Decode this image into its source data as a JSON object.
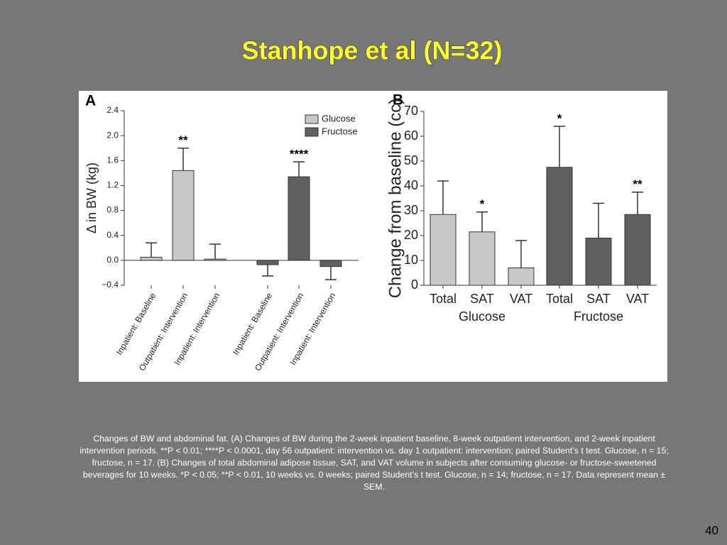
{
  "title": "Stanhope et al  (N=32)",
  "chart_data": [
    {
      "type": "bar",
      "panel": "A",
      "ylabel": "Δ in BW (kg)",
      "categories": [
        "Inpatient: Baseline",
        "Outpatient: Intervention",
        "Inpatient: Intervention",
        "Inpatient: Baseline",
        "Outpatient: Intervention",
        "Inpatient: Intervention"
      ],
      "series": [
        {
          "name": "Glucose",
          "color": "#c8c8c8",
          "values": [
            0.05,
            1.44,
            0.02,
            null,
            null,
            null
          ],
          "errors": [
            0.23,
            0.36,
            0.24,
            null,
            null,
            null
          ]
        },
        {
          "name": "Fructose",
          "color": "#606060",
          "values": [
            null,
            null,
            null,
            -0.07,
            1.34,
            -0.1
          ],
          "errors": [
            null,
            null,
            null,
            0.18,
            0.24,
            0.21
          ]
        }
      ],
      "annotations": [
        null,
        "**",
        null,
        null,
        "****",
        null
      ],
      "ylim": [
        -0.4,
        2.4
      ],
      "yticks": [
        {
          "value": -0.4,
          "label": "−0.4"
        },
        {
          "value": 0,
          "label": "0.0"
        },
        0.4,
        0.8,
        1.2,
        1.6,
        {
          "value": 2,
          "label": "2.0"
        },
        2.4
      ],
      "legend": "upper right"
    },
    {
      "type": "bar",
      "panel": "B",
      "ylabel": "Change from baseline (cc)",
      "categories": [
        "Total",
        "SAT",
        "VAT",
        "Total",
        "SAT",
        "VAT"
      ],
      "series": [
        {
          "name": "Glucose",
          "color": "#c8c8c8",
          "values": [
            28.5,
            21.5,
            7,
            null,
            null,
            null
          ],
          "errors": [
            13.5,
            8,
            11,
            null,
            null,
            null
          ]
        },
        {
          "name": "Fructose",
          "color": "#606060",
          "values": [
            null,
            null,
            null,
            47.5,
            19,
            28.5
          ],
          "errors": [
            null,
            null,
            null,
            16.5,
            14,
            9
          ]
        }
      ],
      "annotations": [
        null,
        "*",
        null,
        "*",
        null,
        "**"
      ],
      "ylim": [
        0,
        70
      ],
      "yticks": [
        0,
        10,
        20,
        30,
        40,
        50,
        60,
        70
      ],
      "legend": null
    }
  ],
  "caption": "Changes of BW and abdominal fat. (A) Changes of BW during the 2-week inpatient baseline, 8-week outpatient intervention, and 2-week inpatient intervention periods. **P < 0.01; ****P < 0.0001, day 56 outpatient: intervention vs. day 1 outpatient: intervention; paired Student’s t test. Glucose, n = 15; fructose, n = 17. (B) Changes of total abdominal adipose tissue, SAT, and VAT volume in subjects after consuming glucose- or fructose-sweetened beverages for 10 weeks. *P < 0.05; **P < 0.01, 10 weeks vs. 0 weeks; paired Student’s t test. Glucose, n = 14; fructose, n = 17. Data represent mean ± SEM.",
  "page_number": "40"
}
